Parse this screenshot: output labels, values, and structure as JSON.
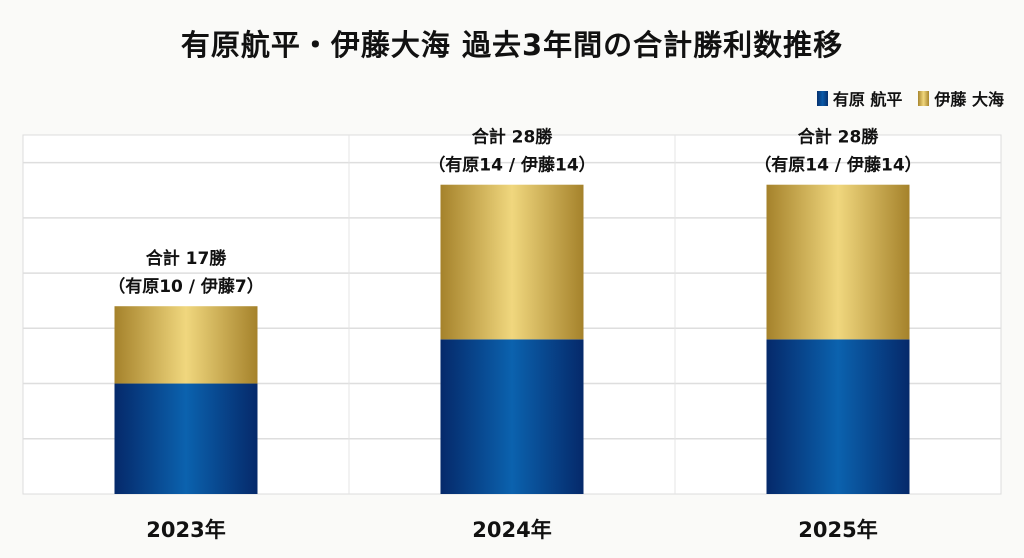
{
  "chart_data": {
    "type": "bar",
    "stacked": true,
    "title": "有原航平・伊藤大海 過去3年間の合計勝利数推移",
    "categories": [
      "2023年",
      "2024年",
      "2025年"
    ],
    "series": [
      {
        "name": "有原 航平",
        "values": [
          10,
          14,
          14
        ],
        "color": "#0a4f9a"
      },
      {
        "name": "伊藤 大海",
        "values": [
          7,
          14,
          14
        ],
        "color": "#c9a94a"
      }
    ],
    "data_labels": [
      {
        "total": "合計 17勝",
        "detail": "（有原10 / 伊藤7）"
      },
      {
        "total": "合計 28勝",
        "detail": "（有原14 / 伊藤14）"
      },
      {
        "total": "合計 28勝",
        "detail": "（有原14 / 伊藤14）"
      }
    ],
    "ylim": [
      0,
      32.5
    ],
    "grid": true,
    "legend_position": "top-right",
    "xlabel": "",
    "ylabel": ""
  }
}
